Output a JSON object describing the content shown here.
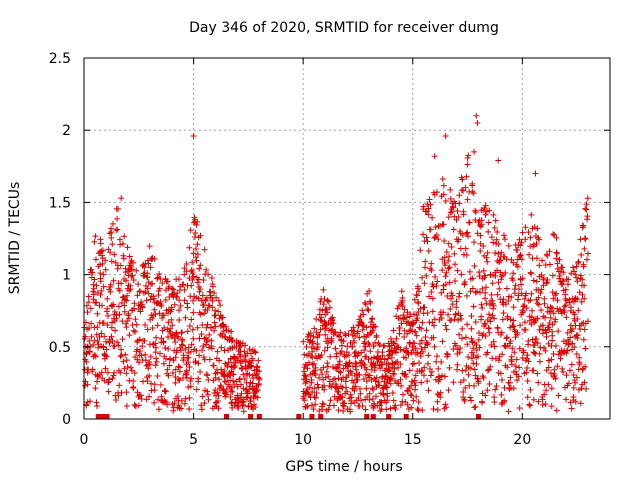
{
  "chart_data": {
    "type": "scatter",
    "title": "Day 346 of 2020, SRMTID for receiver dumg",
    "xlabel": "GPS time / hours",
    "ylabel": "SRMTID / TECUs",
    "xlim": [
      0,
      24
    ],
    "ylim": [
      0,
      2.5
    ],
    "x_ticks": [
      "0",
      "5",
      "10",
      "15",
      "20"
    ],
    "x_tick_values": [
      0,
      5,
      10,
      15,
      20
    ],
    "y_ticks": [
      "0",
      "0.5",
      "1",
      "1.5",
      "2",
      "2.5"
    ],
    "y_tick_values": [
      0,
      0.5,
      1,
      1.5,
      2,
      2.5
    ],
    "grid": true,
    "marker": "plus",
    "color": "#dd0000",
    "missing_data_hours": [
      0.65,
      0.75,
      0.85,
      0.95,
      1.05,
      6.5,
      7.6,
      8.0,
      9.8,
      10.4,
      10.8,
      12.9,
      13.2,
      13.9,
      14.7,
      18.0
    ],
    "envelope": [
      {
        "t": 0.0,
        "hi": 0.75
      },
      {
        "t": 0.5,
        "hi": 1.3
      },
      {
        "t": 1.0,
        "hi": 1.25
      },
      {
        "t": 1.5,
        "hi": 1.5
      },
      {
        "t": 2.0,
        "hi": 1.2
      },
      {
        "t": 2.5,
        "hi": 1.0
      },
      {
        "t": 3.0,
        "hi": 1.2
      },
      {
        "t": 3.5,
        "hi": 1.05
      },
      {
        "t": 4.0,
        "hi": 0.95
      },
      {
        "t": 4.5,
        "hi": 1.0
      },
      {
        "t": 5.0,
        "hi": 1.45
      },
      {
        "t": 5.5,
        "hi": 1.2
      },
      {
        "t": 6.0,
        "hi": 0.9
      },
      {
        "t": 6.5,
        "hi": 0.65
      },
      {
        "t": 7.0,
        "hi": 0.55
      },
      {
        "t": 7.5,
        "hi": 0.5
      },
      {
        "t": 8.0,
        "hi": 0.45
      },
      {
        "t": 10.0,
        "hi": 0.55
      },
      {
        "t": 10.5,
        "hi": 0.65
      },
      {
        "t": 11.0,
        "hi": 0.95
      },
      {
        "t": 11.5,
        "hi": 0.6
      },
      {
        "t": 12.0,
        "hi": 0.6
      },
      {
        "t": 12.5,
        "hi": 0.7
      },
      {
        "t": 13.0,
        "hi": 0.9
      },
      {
        "t": 13.5,
        "hi": 0.5
      },
      {
        "t": 14.0,
        "hi": 0.55
      },
      {
        "t": 14.5,
        "hi": 0.9
      },
      {
        "t": 15.0,
        "hi": 0.7
      },
      {
        "t": 15.5,
        "hi": 1.5
      },
      {
        "t": 16.0,
        "hi": 1.6
      },
      {
        "t": 16.5,
        "hi": 1.7
      },
      {
        "t": 17.0,
        "hi": 1.5
      },
      {
        "t": 17.5,
        "hi": 1.9
      },
      {
        "t": 18.0,
        "hi": 1.4
      },
      {
        "t": 18.5,
        "hi": 1.6
      },
      {
        "t": 19.0,
        "hi": 1.3
      },
      {
        "t": 19.5,
        "hi": 1.25
      },
      {
        "t": 20.0,
        "hi": 1.3
      },
      {
        "t": 20.5,
        "hi": 1.5
      },
      {
        "t": 21.0,
        "hi": 1.1
      },
      {
        "t": 21.5,
        "hi": 1.35
      },
      {
        "t": 22.0,
        "hi": 1.0
      },
      {
        "t": 22.5,
        "hi": 1.1
      },
      {
        "t": 23.0,
        "hi": 1.6
      }
    ],
    "outliers": [
      {
        "x": 5.0,
        "y": 1.96
      },
      {
        "x": 16.5,
        "y": 1.96
      },
      {
        "x": 17.9,
        "y": 2.1
      },
      {
        "x": 17.95,
        "y": 2.05
      },
      {
        "x": 17.8,
        "y": 1.85
      },
      {
        "x": 18.9,
        "y": 1.79
      },
      {
        "x": 16.0,
        "y": 1.82
      },
      {
        "x": 1.7,
        "y": 1.53
      },
      {
        "x": 20.6,
        "y": 1.7
      }
    ],
    "gaps_hours": [
      [
        8.1,
        9.9
      ]
    ]
  }
}
